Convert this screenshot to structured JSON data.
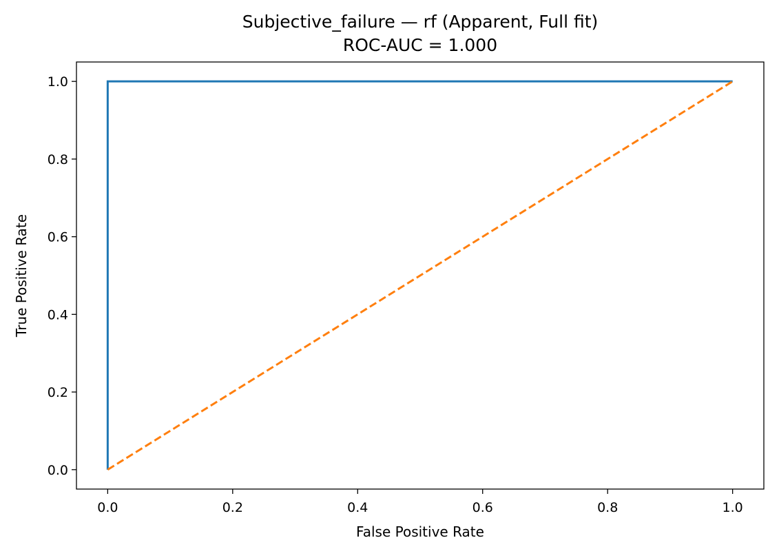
{
  "chart_data": {
    "type": "line",
    "title": "Subjective_failure — rf (Apparent, Full fit)",
    "subtitle": "ROC-AUC = 1.000",
    "xlabel": "False Positive Rate",
    "ylabel": "True Positive Rate",
    "xlim": [
      -0.05,
      1.05
    ],
    "ylim": [
      -0.05,
      1.05
    ],
    "xticks": [
      0.0,
      0.2,
      0.4,
      0.6,
      0.8,
      1.0
    ],
    "yticks": [
      0.0,
      0.2,
      0.4,
      0.6,
      0.8,
      1.0
    ],
    "xtick_labels": [
      "0.0",
      "0.2",
      "0.4",
      "0.6",
      "0.8",
      "1.0"
    ],
    "ytick_labels": [
      "0.0",
      "0.2",
      "0.4",
      "0.6",
      "0.8",
      "1.0"
    ],
    "grid": false,
    "series": [
      {
        "x": [
          0.0,
          0.0,
          1.0
        ],
        "y": [
          0.0,
          1.0,
          1.0
        ],
        "color": "#1f77b4",
        "style": "solid"
      },
      {
        "x": [
          0.0,
          1.0
        ],
        "y": [
          0.0,
          1.0
        ],
        "color": "#ff7f0e",
        "style": "dashed"
      }
    ]
  }
}
